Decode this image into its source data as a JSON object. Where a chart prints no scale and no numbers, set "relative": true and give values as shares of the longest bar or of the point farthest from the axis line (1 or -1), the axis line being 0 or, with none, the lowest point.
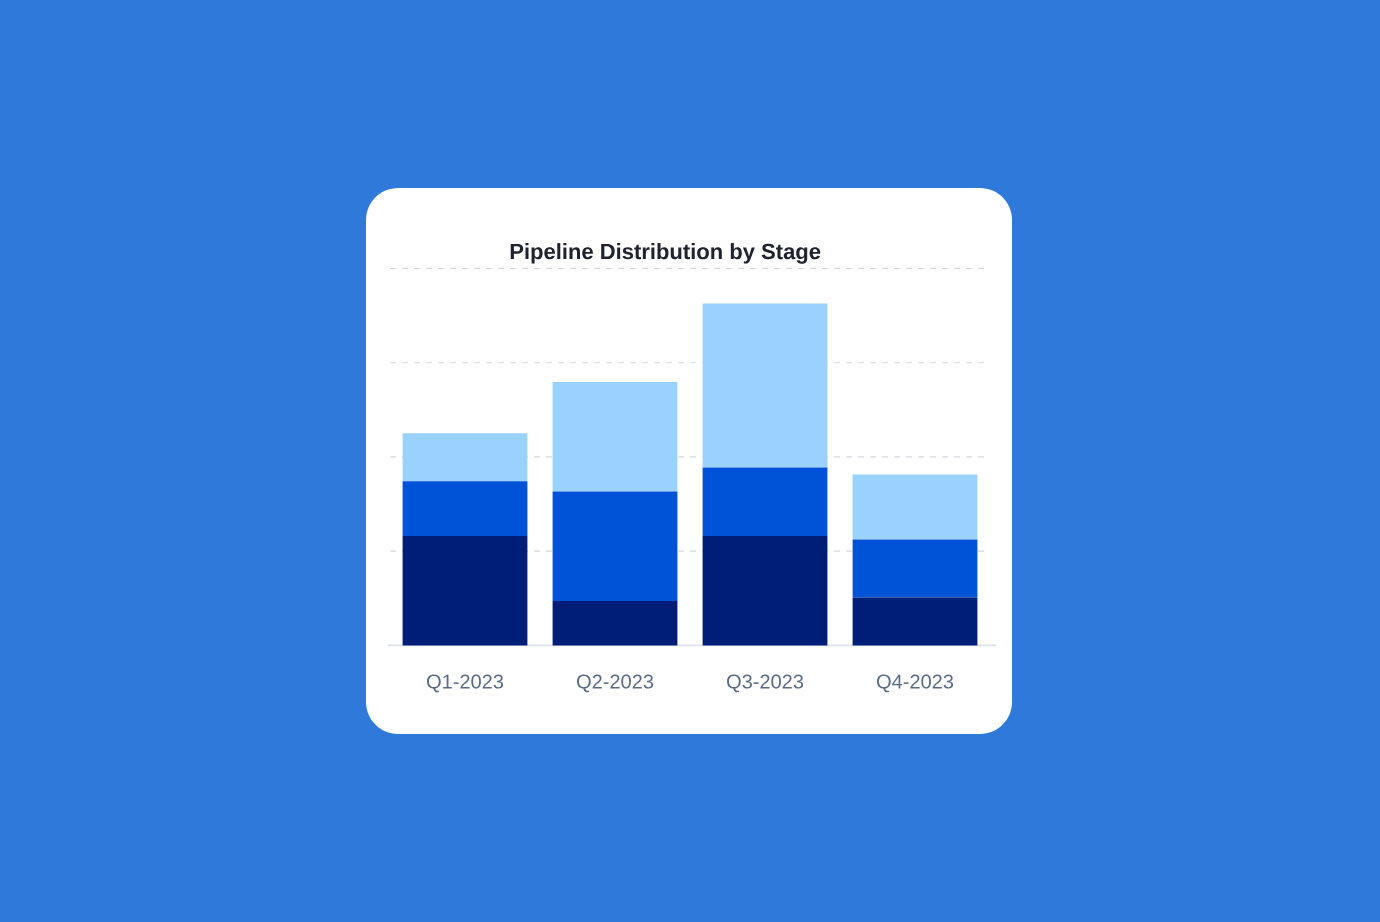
{
  "chart_data": {
    "type": "bar",
    "title": "Pipeline Distribution by Stage",
    "categories": [
      "Q1-2023",
      "Q2-2023",
      "Q3-2023",
      "Q4-2023"
    ],
    "stacked": true,
    "relative": true,
    "grid": "y",
    "series": [
      {
        "color": "#001e78",
        "values": [
          0.32,
          0.13,
          0.32,
          0.14
        ]
      },
      {
        "color": "#0052d6",
        "values": [
          0.16,
          0.32,
          0.2,
          0.17
        ]
      },
      {
        "color": "#99d3fd",
        "values": [
          0.14,
          0.32,
          0.48,
          0.19
        ]
      }
    ]
  }
}
